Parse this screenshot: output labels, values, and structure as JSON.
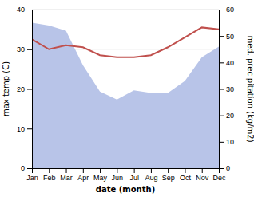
{
  "chart_data": {
    "type": "line",
    "categories": [
      "Jan",
      "Feb",
      "Mar",
      "Apr",
      "May",
      "Jun",
      "Jul",
      "Aug",
      "Sep",
      "Oct",
      "Nov",
      "Dec"
    ],
    "xlabel": "date (month)",
    "ylabel": "max temp (C)",
    "y2label": "med. precipitation (kg/m2)",
    "ylim": [
      0,
      40
    ],
    "yticks": [
      0,
      10,
      20,
      30,
      40
    ],
    "y2lim": [
      0,
      60
    ],
    "y2ticks": [
      0,
      10,
      20,
      30,
      40,
      50,
      60
    ],
    "grid": true,
    "series": [
      {
        "type": "area",
        "axis": "y2",
        "color": "#b8c4e8",
        "values": [
          55.0,
          54.0,
          52.0,
          39.0,
          29.0,
          26.0,
          29.5,
          28.5,
          28.5,
          33.0,
          42.0,
          46.0
        ]
      },
      {
        "type": "line",
        "color": "#c0504d",
        "values": [
          32.5,
          30.0,
          31.0,
          30.5,
          28.5,
          28.0,
          28.0,
          28.5,
          30.5,
          33.0,
          35.5,
          35.0
        ]
      }
    ]
  }
}
